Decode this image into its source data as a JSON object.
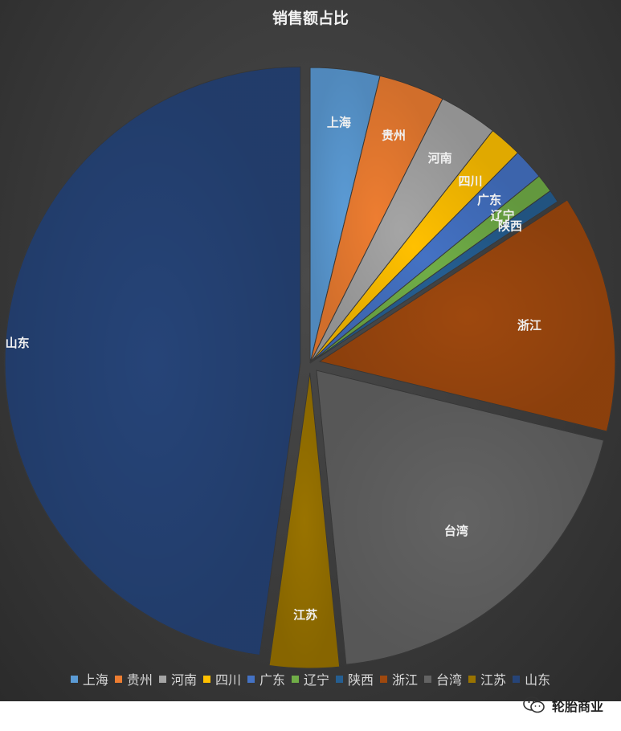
{
  "chart_data": {
    "type": "pie",
    "title": "销售额占比",
    "categories": [
      "上海",
      "贵州",
      "河南",
      "四川",
      "广东",
      "辽宁",
      "陕西",
      "浙江",
      "台湾",
      "江苏",
      "山东"
    ],
    "values": [
      3.8,
      3.6,
      3.2,
      1.8,
      1.7,
      1.0,
      0.7,
      13.0,
      19.6,
      3.8,
      47.8
    ],
    "colors": [
      "#5b9bd5",
      "#ed7d31",
      "#a5a5a5",
      "#ffc000",
      "#4472c4",
      "#70ad47",
      "#255e91",
      "#9e480e",
      "#636363",
      "#997300",
      "#264478"
    ],
    "exploded": [
      "浙江",
      "台湾",
      "江苏",
      "山东"
    ],
    "legend_position": "bottom"
  },
  "watermark": {
    "text": "轮胎商业",
    "icon": "wechat-icon"
  }
}
